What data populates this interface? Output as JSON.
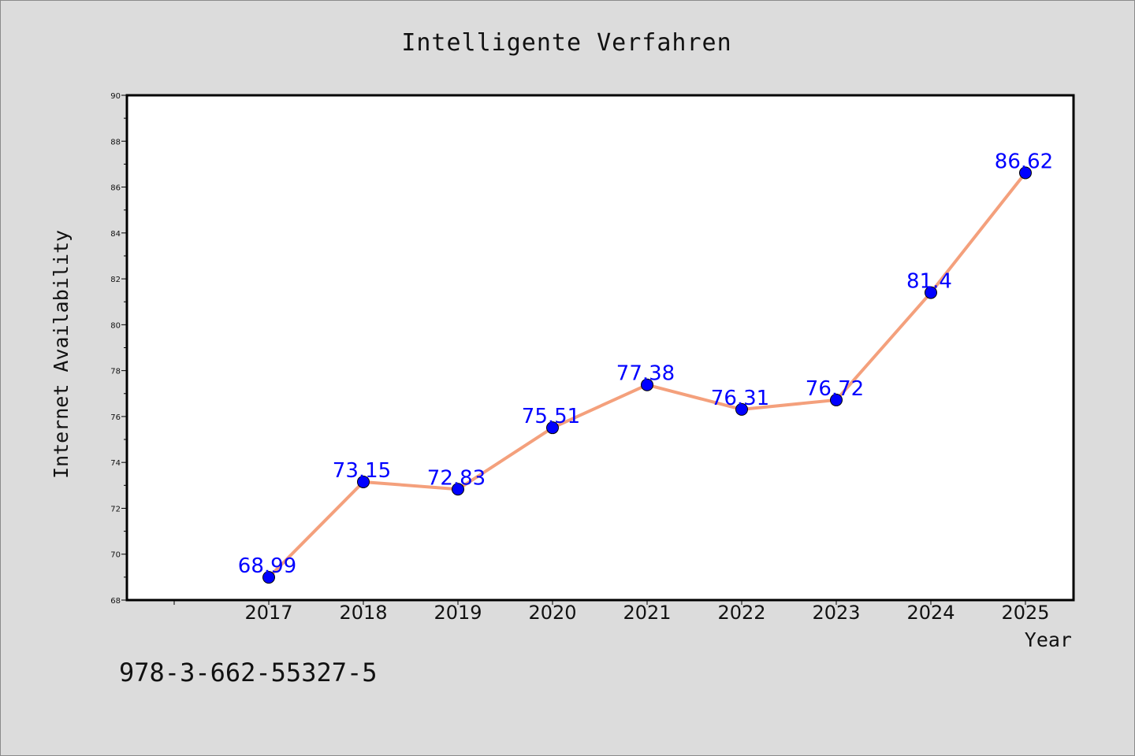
{
  "chart_data": {
    "type": "line",
    "title": "Intelligente Verfahren",
    "xlabel": "Year",
    "ylabel": "Internet Availability",
    "categories": [
      "2017",
      "2018",
      "2019",
      "2020",
      "2021",
      "2022",
      "2023",
      "2024",
      "2025"
    ],
    "series": [
      {
        "values": [
          68.99,
          73.15,
          72.83,
          75.51,
          77.38,
          76.31,
          76.72,
          81.4,
          86.62
        ],
        "line_color": "#f4a07c",
        "marker_color": "#0000ff"
      }
    ],
    "data_labels": [
      "68.99",
      "73.15",
      "72.83",
      "75.51",
      "77.38",
      "76.31",
      "76.72",
      "81.4",
      "86.62"
    ],
    "ylim": [
      68,
      90
    ],
    "yticks": [
      "68",
      "70",
      "72",
      "74",
      "76",
      "78",
      "80",
      "82",
      "84",
      "86",
      "88",
      "90"
    ],
    "grid": false,
    "legend": "none"
  },
  "footer": {
    "isbn": "978-3-662-55327-5"
  }
}
